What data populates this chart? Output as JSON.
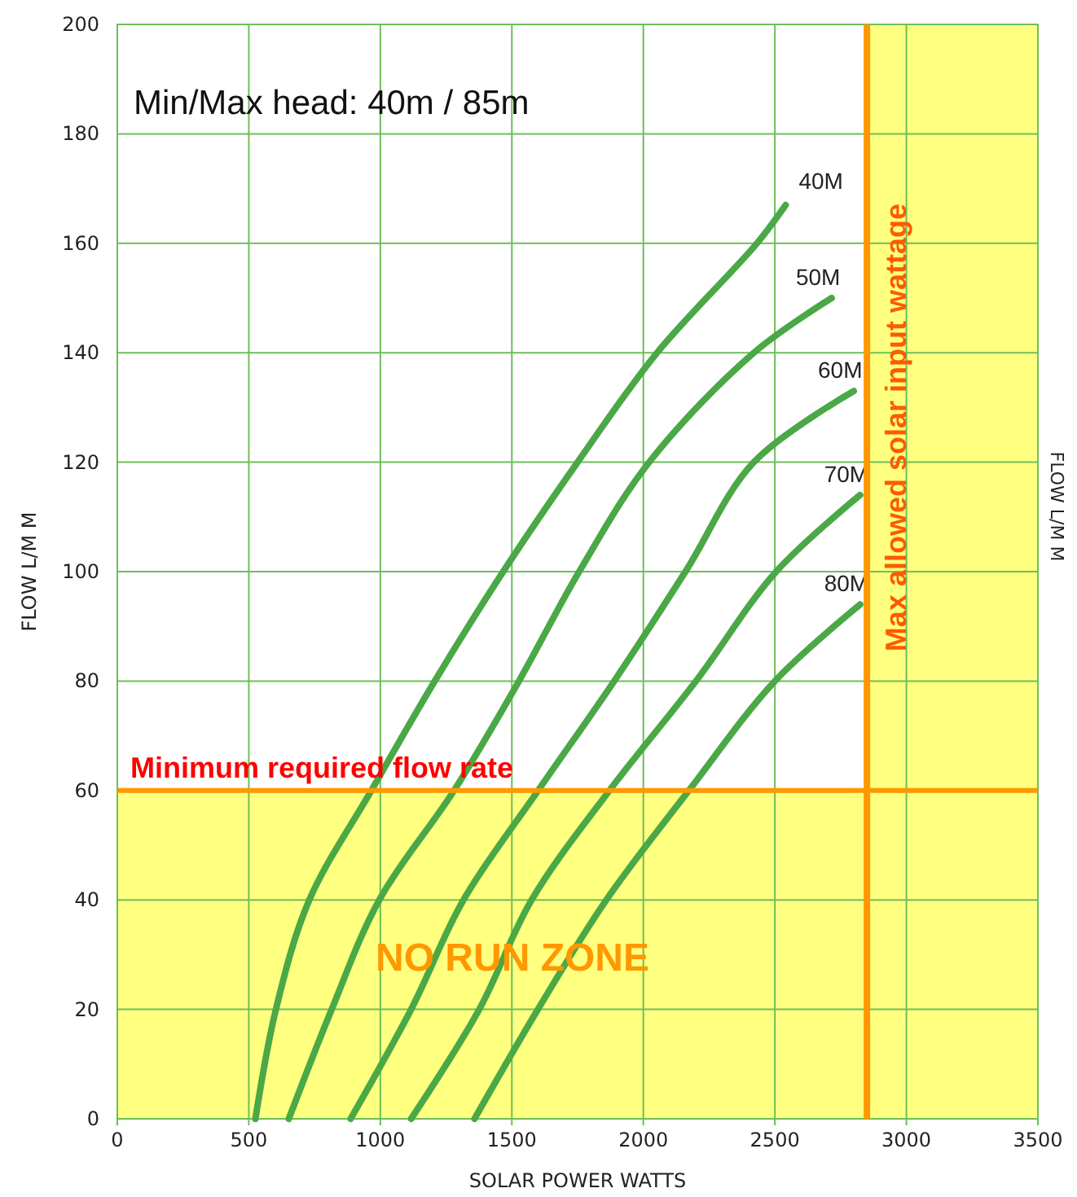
{
  "chart_data": {
    "type": "line",
    "xlabel": "SOLAR POWER WATTS",
    "ylabel": "FLOW L/M M",
    "y2label": "FLOW L/M M",
    "annotations": [
      "Min/Max head: 40m / 85m"
    ],
    "xlim": [
      0,
      3500
    ],
    "xticks": [
      0,
      500,
      1000,
      1500,
      2000,
      2500,
      3000,
      3500
    ],
    "ylim": [
      0,
      200
    ],
    "yticks": [
      0,
      20,
      40,
      60,
      80,
      100,
      120,
      140,
      160,
      180,
      200
    ],
    "grid": true,
    "legend": false,
    "marker": "none",
    "line_style": "solid",
    "ref_lines": [
      {
        "axis": "y",
        "value": 60,
        "label": "Minimum required flow rate",
        "color": "#ff9800"
      },
      {
        "axis": "x",
        "value": 2850,
        "label": "Max allowed solar input wattage",
        "color": "#ff9800"
      }
    ],
    "bands": [
      {
        "axis": "y",
        "from": 0,
        "to": 60,
        "label": "NO RUN ZONE",
        "color": "#ffff80"
      },
      {
        "axis": "x",
        "from": 2850,
        "to": 3500,
        "color": "#ffff80"
      }
    ],
    "series": [
      {
        "name": "40M",
        "color": "#4aa846",
        "x": [
          525,
          603,
          730,
          966,
          1207,
          1467,
          1750,
          2052,
          2432,
          2541
        ],
        "values": [
          0,
          20,
          40,
          60,
          80,
          100,
          120,
          140,
          160,
          167
        ]
      },
      {
        "name": "50M",
        "color": "#4aa846",
        "x": [
          652,
          815,
          996,
          1280,
          1527,
          1756,
          2022,
          2420,
          2716
        ],
        "values": [
          0,
          20,
          40,
          60,
          80,
          100,
          120,
          140,
          150
        ]
      },
      {
        "name": "60M",
        "color": "#4aa846",
        "x": [
          887,
          1117,
          1316,
          1600,
          1889,
          2160,
          2420,
          2800
        ],
        "values": [
          0,
          20,
          40,
          60,
          80,
          100,
          120,
          133
        ]
      },
      {
        "name": "70M",
        "color": "#4aa846",
        "x": [
          1117,
          1376,
          1575,
          1871,
          2200,
          2505,
          2824
        ],
        "values": [
          0,
          20,
          40,
          60,
          80,
          100,
          114
        ]
      },
      {
        "name": "80M",
        "color": "#4aa846",
        "x": [
          1358,
          1599,
          1859,
          2173,
          2500,
          2824
        ],
        "values": [
          0,
          20,
          40,
          60,
          80,
          94
        ]
      }
    ]
  }
}
